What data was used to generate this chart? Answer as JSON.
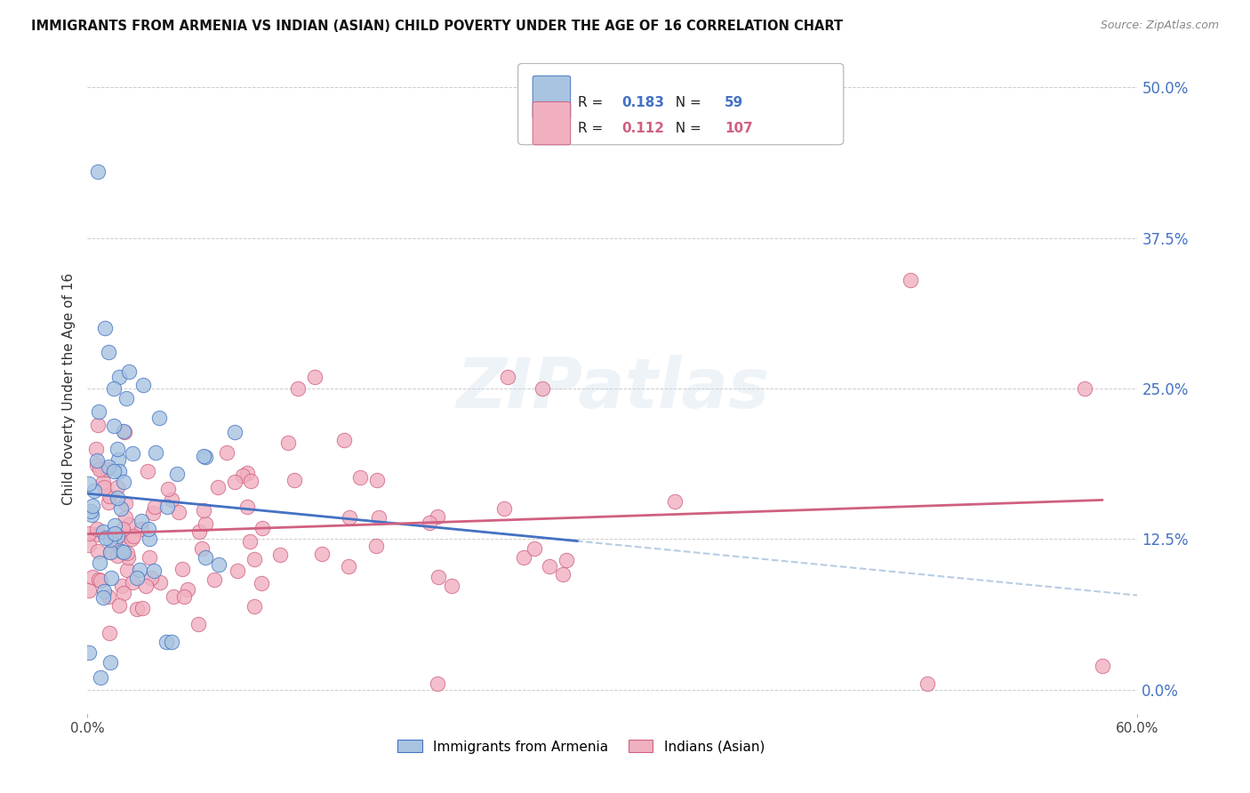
{
  "title": "IMMIGRANTS FROM ARMENIA VS INDIAN (ASIAN) CHILD POVERTY UNDER THE AGE OF 16 CORRELATION CHART",
  "source": "Source: ZipAtlas.com",
  "ylabel": "Child Poverty Under the Age of 16",
  "xlabel_ticks": [
    "0.0%",
    "60.0%"
  ],
  "ytick_labels": [
    "0.0%",
    "12.5%",
    "25.0%",
    "37.5%",
    "50.0%"
  ],
  "ytick_values": [
    0.0,
    0.125,
    0.25,
    0.375,
    0.5
  ],
  "xlim": [
    0.0,
    0.6
  ],
  "ylim": [
    -0.02,
    0.52
  ],
  "background_color": "#ffffff",
  "grid_color": "#cccccc",
  "watermark": "ZIPatlas",
  "arm_color": "#a8c4e0",
  "arm_edge": "#4472c4",
  "arm_line": "#4472c4",
  "ind_color": "#f0b0c0",
  "ind_edge": "#d06080",
  "ind_line": "#d06080",
  "arm_R": "0.183",
  "arm_N": "59",
  "ind_R": "0.112",
  "ind_N": "107",
  "legend_label_arm": "Immigrants from Armenia",
  "legend_label_ind": "Indians (Asian)"
}
